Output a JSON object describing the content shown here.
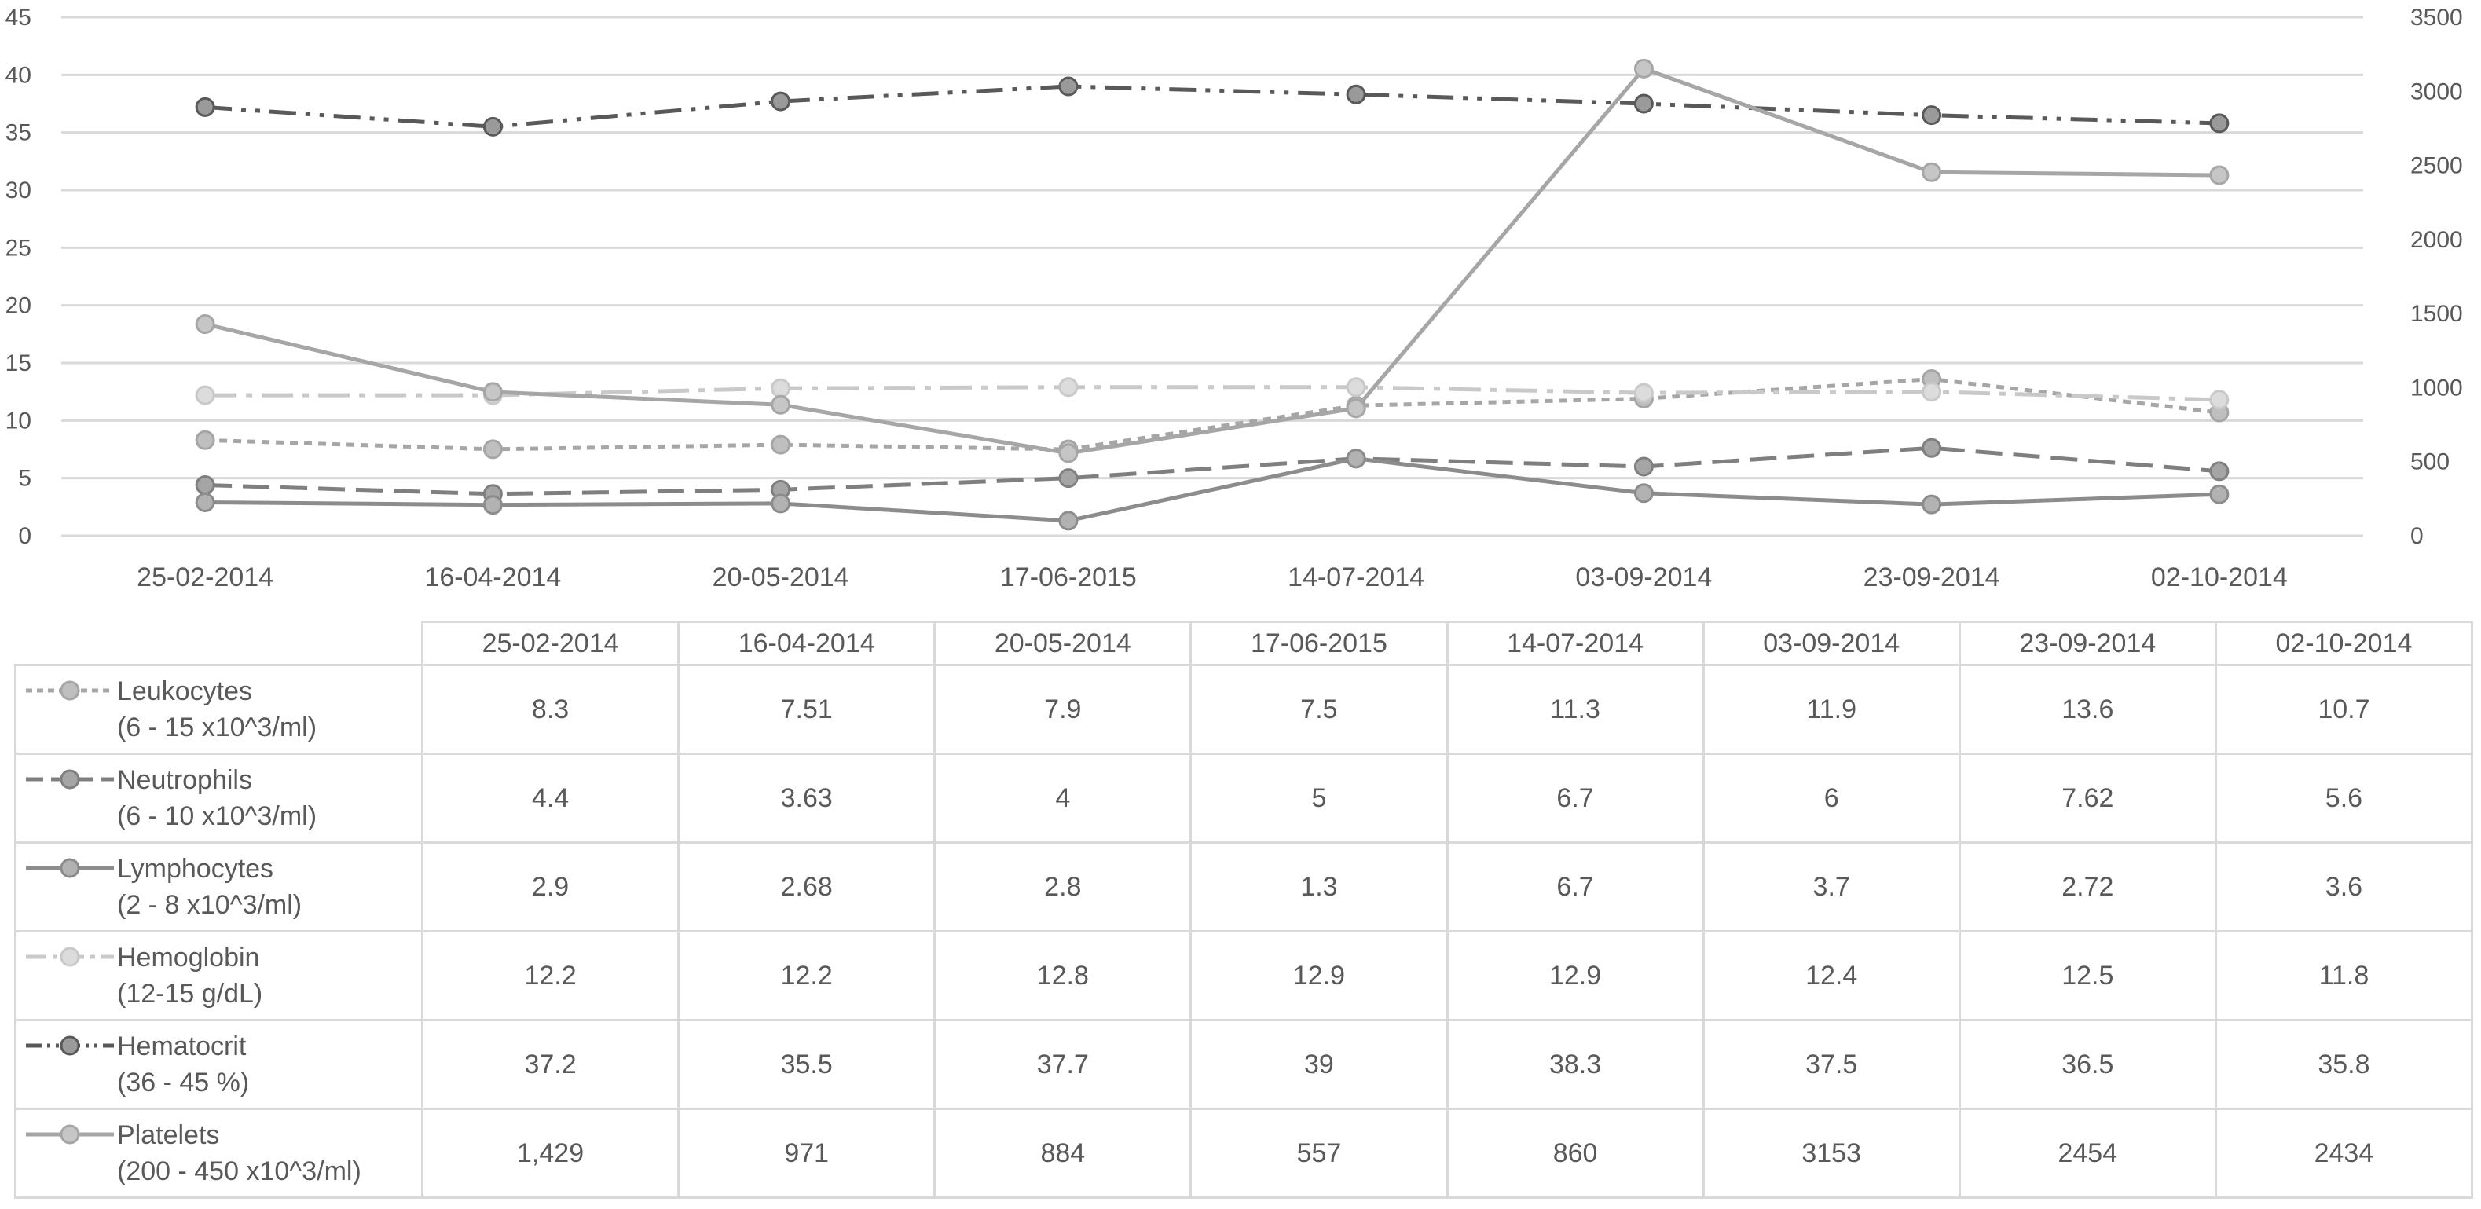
{
  "chart_data": {
    "type": "line",
    "title": "",
    "categories": [
      "25-02-2014",
      "16-04-2014",
      "20-05-2014",
      "17-06-2015",
      "14-07-2014",
      "03-09-2014",
      "23-09-2014",
      "02-10-2014"
    ],
    "y_left": {
      "ylim": [
        0,
        45
      ],
      "ticks": [
        "0",
        "5",
        "10",
        "15",
        "20",
        "25",
        "30",
        "35",
        "40",
        "45"
      ]
    },
    "y_right": {
      "ylim": [
        0,
        3500
      ],
      "ticks": [
        "0",
        "500",
        "1000",
        "1500",
        "2000",
        "2500",
        "3000",
        "3500"
      ]
    },
    "grid": true,
    "legend": "data-table",
    "series": [
      {
        "id": "leukocytes",
        "name": "Leukocytes",
        "range": "(6 - 15 x10^3/ml)",
        "axis": "left",
        "values": [
          8.3,
          7.51,
          7.9,
          7.5,
          11.3,
          11.9,
          13.6,
          10.7
        ],
        "labels": [
          "8.3",
          "7.51",
          "7.9",
          "7.5",
          "11.3",
          "11.9",
          "13.6",
          "10.7"
        ],
        "style": "dash",
        "color": "#a6a6a6",
        "marker": "#bfbfbf"
      },
      {
        "id": "neutrophils",
        "name": "Neutrophils",
        "range": "(6 - 10 x10^3/ml)",
        "axis": "left",
        "values": [
          4.4,
          3.63,
          4,
          5,
          6.7,
          6,
          7.62,
          5.6
        ],
        "labels": [
          "4.4",
          "3.63",
          "4",
          "5",
          "6.7",
          "6",
          "7.62",
          "5.6"
        ],
        "style": "long-dash",
        "color": "#7f7f7f",
        "marker": "#a5a5a5"
      },
      {
        "id": "lymphocytes",
        "name": "Lymphocytes",
        "range": "(2 - 8 x10^3/ml)",
        "axis": "left",
        "values": [
          2.9,
          2.68,
          2.8,
          1.3,
          6.7,
          3.7,
          2.72,
          3.6
        ],
        "labels": [
          "2.9",
          "2.68",
          "2.8",
          "1.3",
          "6.7",
          "3.7",
          "2.72",
          "3.6"
        ],
        "style": "solid",
        "color": "#8c8c8c",
        "marker": "#b2b2b2"
      },
      {
        "id": "hemoglobin",
        "name": "Hemoglobin",
        "range": "(12-15 g/dL)",
        "axis": "left",
        "values": [
          12.2,
          12.2,
          12.8,
          12.9,
          12.9,
          12.4,
          12.5,
          11.8
        ],
        "labels": [
          "12.2",
          "12.2",
          "12.8",
          "12.9",
          "12.9",
          "12.4",
          "12.5",
          "11.8"
        ],
        "style": "dash-dot",
        "color": "#c9c9c9",
        "marker": "#dcdcdc"
      },
      {
        "id": "hematocrit",
        "name": "Hematocrit",
        "range": "(36 - 45 %)",
        "axis": "left",
        "values": [
          37.2,
          35.5,
          37.7,
          39,
          38.3,
          37.5,
          36.5,
          35.8
        ],
        "labels": [
          "37.2",
          "35.5",
          "37.7",
          "39",
          "38.3",
          "37.5",
          "36.5",
          "35.8"
        ],
        "style": "dash-dot-dot",
        "color": "#595959",
        "marker": "#9a9a9a"
      },
      {
        "id": "platelets",
        "name": "Platelets",
        "range": "(200 - 450 x10^3/ml)",
        "axis": "right",
        "values": [
          1429,
          971,
          884,
          557,
          860,
          3153,
          2454,
          2434
        ],
        "labels": [
          "1,429",
          "971",
          "884",
          "557",
          "860",
          "3153",
          "2454",
          "2434"
        ],
        "style": "solid",
        "color": "#a6a6a6",
        "marker": "#c6c6c6"
      }
    ]
  }
}
